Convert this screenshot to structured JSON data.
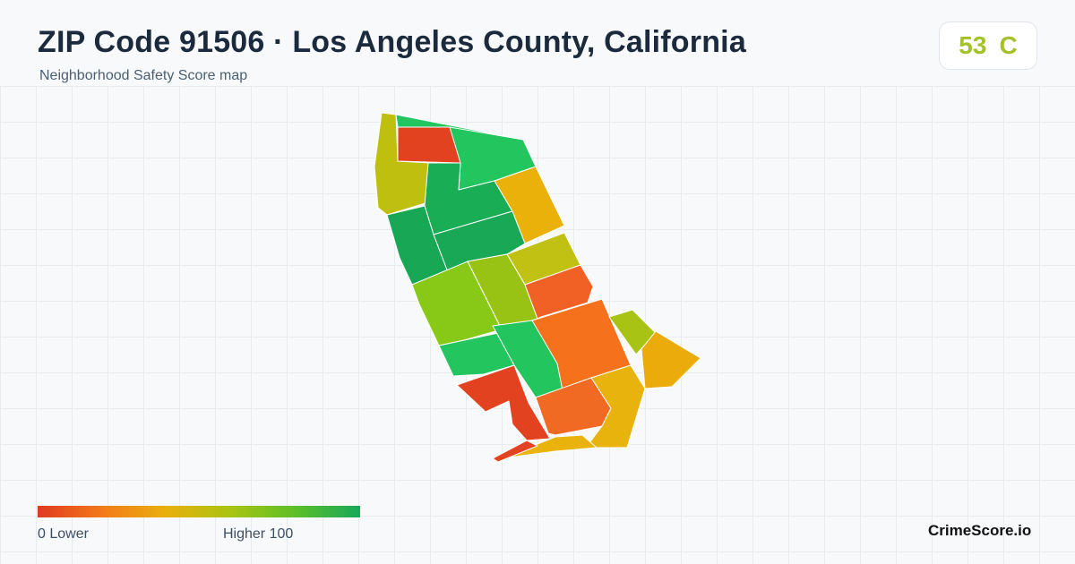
{
  "header": {
    "title": "ZIP Code 91506 · Los Angeles County, California",
    "subtitle": "Neighborhood Safety Score map"
  },
  "score": {
    "value": "53",
    "grade": "C",
    "color": "#a3c12a"
  },
  "legend": {
    "low_label": "0  Lower",
    "high_label": "Higher  100",
    "gradient_colors": [
      "#e03a1f",
      "#f27a1a",
      "#e8b00c",
      "#a8c412",
      "#5cbf2a",
      "#17a85a"
    ]
  },
  "brand": "CrimeScore.io",
  "map": {
    "region_colors": {
      "top-left": "#bfbf10",
      "north-strip": "#22c55e",
      "north-red": "#e2421f",
      "north-east": "#22c55e",
      "upper-mid": "#19ae55",
      "upper-east": "#eab10b",
      "west-green": "#18a855",
      "center-green": "#19a956",
      "east-olive": "#c1c114",
      "center-lime": "#88c917",
      "mid-lime": "#99c314",
      "east-orange": "#f16125",
      "south-center": "#f6711c",
      "far-east-olive": "#a9c314",
      "far-east-amber": "#eaab0b",
      "south-west-green": "#22c55e",
      "south-mid-green": "#22c55e",
      "south-west-red": "#e2421f",
      "south-orange": "#f16a24",
      "south-amber": "#e8b30c",
      "bottom-amber": "#e9b20c",
      "bottom-tip-red": "#e2421f"
    }
  }
}
